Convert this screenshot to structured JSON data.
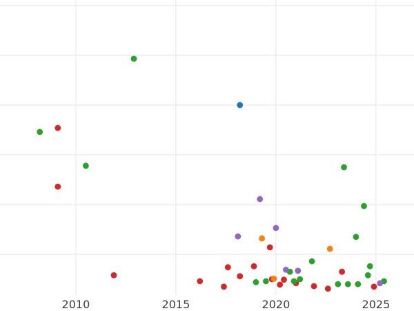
{
  "chart_data": {
    "type": "scatter",
    "title": "",
    "xlabel": "",
    "ylabel": "",
    "grid": true,
    "grid_color": "#e6e6e6",
    "tick_color": "#3b3b3b",
    "background_color": "#ffffff",
    "xlim": [
      2006.21,
      2026.9
    ],
    "ylim": [
      -1.39,
      61.11
    ],
    "x_ticks": [
      2010,
      2015,
      2020,
      2025
    ],
    "x_tick_labels": [
      "2010",
      "2015",
      "2020",
      "2025"
    ],
    "y_gridlines": [
      10,
      20,
      30,
      40,
      50,
      60
    ],
    "point_radius": 4.4,
    "legend": "none",
    "series": [
      {
        "name": "red",
        "color": "#d62728",
        "points": [
          [
            2009.1,
            35.4
          ],
          [
            2009.1,
            23.6
          ],
          [
            2011.9,
            5.8
          ],
          [
            2016.2,
            4.6
          ],
          [
            2017.4,
            3.5
          ],
          [
            2017.6,
            7.4
          ],
          [
            2018.2,
            5.6
          ],
          [
            2018.9,
            7.6
          ],
          [
            2019.7,
            11.4
          ],
          [
            2019.8,
            5.0
          ],
          [
            2020.2,
            3.9
          ],
          [
            2020.4,
            4.9
          ],
          [
            2021.0,
            4.2
          ],
          [
            2021.9,
            3.6
          ],
          [
            2022.6,
            3.1
          ],
          [
            2023.3,
            6.5
          ],
          [
            2024.9,
            3.5
          ]
        ]
      },
      {
        "name": "green",
        "color": "#2ca02c",
        "points": [
          [
            2008.2,
            34.6
          ],
          [
            2010.5,
            27.8
          ],
          [
            2012.9,
            49.3
          ],
          [
            2019.0,
            4.4
          ],
          [
            2019.5,
            4.6
          ],
          [
            2020.7,
            6.5
          ],
          [
            2020.9,
            4.6
          ],
          [
            2021.2,
            5.0
          ],
          [
            2021.8,
            8.6
          ],
          [
            2023.1,
            4.0
          ],
          [
            2023.4,
            27.5
          ],
          [
            2023.6,
            4.0
          ],
          [
            2024.0,
            13.5
          ],
          [
            2024.1,
            4.0
          ],
          [
            2024.4,
            19.7
          ],
          [
            2024.6,
            5.8
          ],
          [
            2024.7,
            7.6
          ],
          [
            2025.4,
            4.6
          ]
        ]
      },
      {
        "name": "blue",
        "color": "#1f77b4",
        "points": [
          [
            2018.2,
            40.0
          ]
        ]
      },
      {
        "name": "orange",
        "color": "#ff7f0e",
        "points": [
          [
            2019.3,
            13.2
          ],
          [
            2019.9,
            5.1
          ],
          [
            2022.7,
            11.1
          ]
        ]
      },
      {
        "name": "purple",
        "color": "#9467bd",
        "points": [
          [
            2018.1,
            13.6
          ],
          [
            2019.2,
            21.1
          ],
          [
            2020.0,
            15.3
          ],
          [
            2020.5,
            6.9
          ],
          [
            2021.1,
            6.7
          ],
          [
            2025.2,
            4.2
          ]
        ]
      }
    ]
  }
}
